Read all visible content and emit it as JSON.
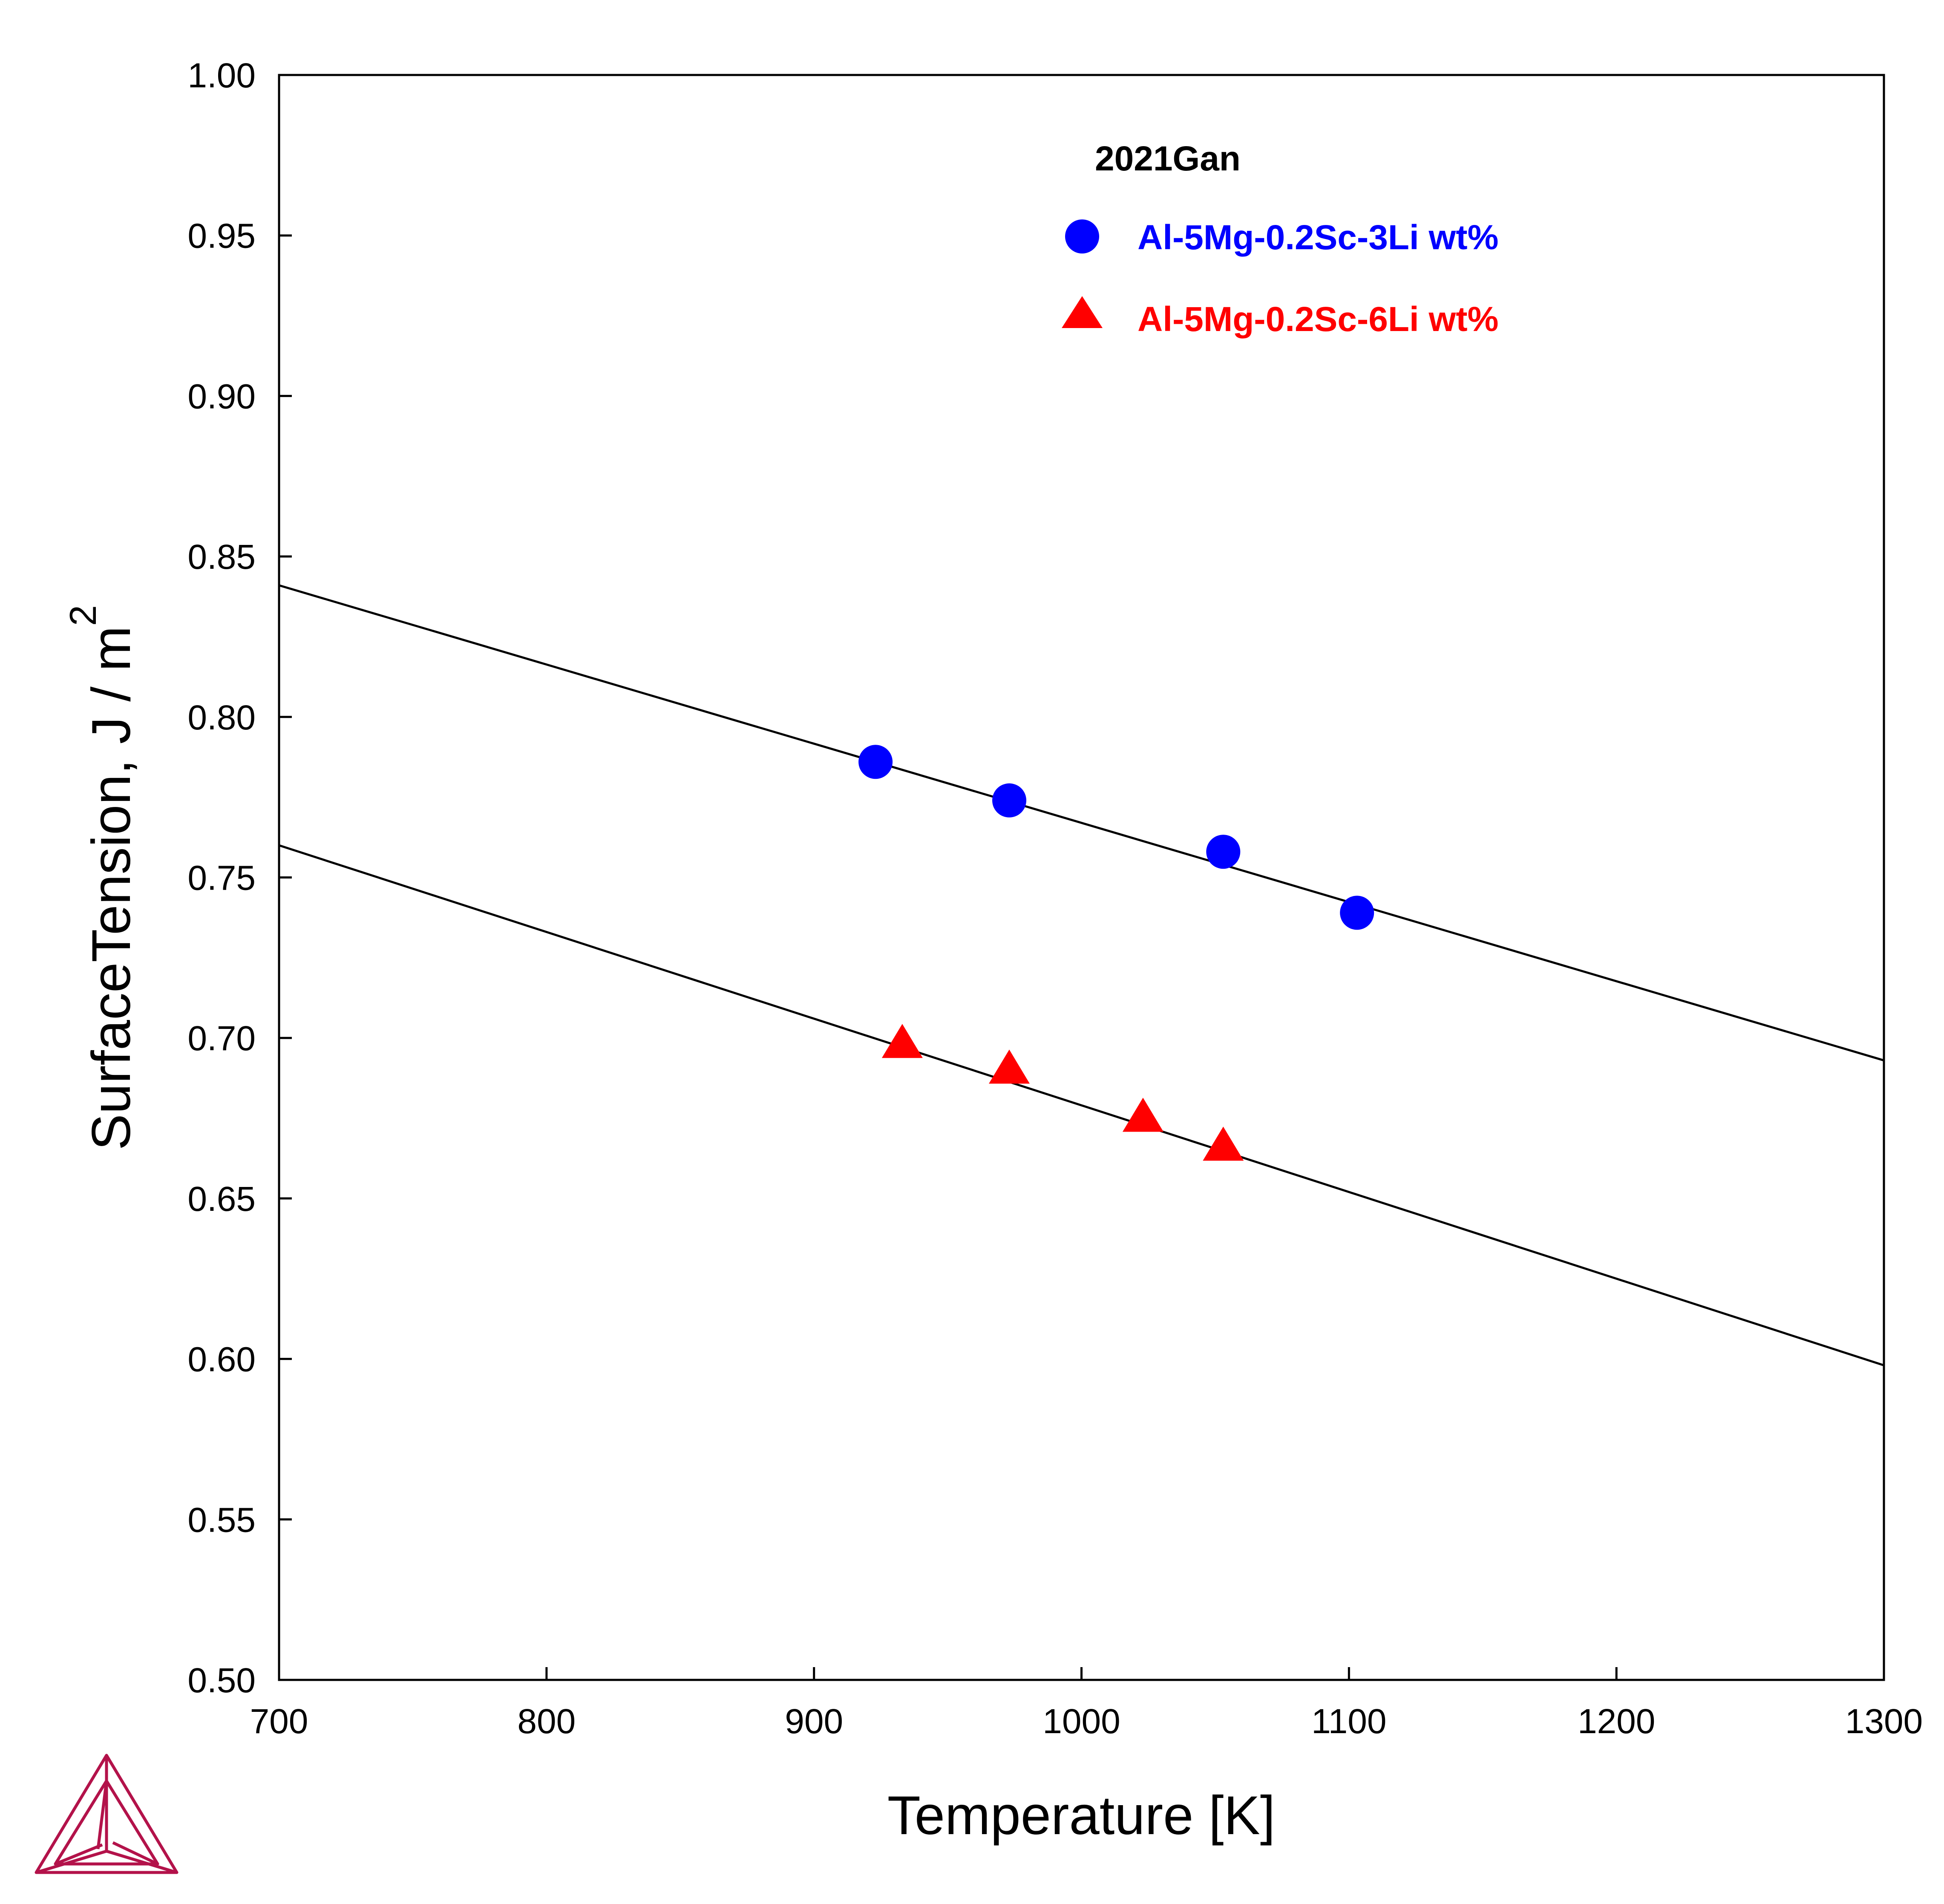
{
  "chart_data": {
    "type": "scatter",
    "xlabel": "Temperature [K]",
    "ylabel": {
      "text": "SurfaceTension, J / m",
      "superscript": "2"
    },
    "xlim": [
      700,
      1300
    ],
    "ylim": [
      0.5,
      1.0
    ],
    "x_ticks": [
      700,
      800,
      900,
      1000,
      1100,
      1200,
      1300
    ],
    "x_tick_labels": [
      "700",
      "800",
      "900",
      "1000",
      "1100",
      "1200",
      "1300"
    ],
    "y_ticks": [
      0.5,
      0.55,
      0.6,
      0.65,
      0.7,
      0.75,
      0.8,
      0.85,
      0.9,
      0.95,
      1.0
    ],
    "y_tick_labels": [
      "0.50",
      "0.55",
      "0.60",
      "0.65",
      "0.70",
      "0.75",
      "0.80",
      "0.85",
      "0.90",
      "0.95",
      "1.00"
    ],
    "grid": false,
    "legend": {
      "title": "2021Gan",
      "placement": "top-right"
    },
    "series": [
      {
        "name": "Al-5Mg-0.2Sc-3Li wt%",
        "kind": "points",
        "marker": "circle",
        "color": "#0000ff",
        "x": [
          923,
          973,
          1053,
          1103
        ],
        "y": [
          0.786,
          0.774,
          0.758,
          0.739
        ]
      },
      {
        "name": "Al-5Mg-0.2Sc-6Li wt%",
        "kind": "points",
        "marker": "triangle",
        "color": "#ff0000",
        "x": [
          933,
          973,
          1023,
          1053
        ],
        "y": [
          0.698,
          0.69,
          0.675,
          0.666
        ]
      },
      {
        "kind": "line",
        "color": "#000000",
        "x": [
          700,
          1300
        ],
        "y": [
          0.841,
          0.693
        ]
      },
      {
        "kind": "line",
        "color": "#000000",
        "x": [
          700,
          1300
        ],
        "y": [
          0.76,
          0.598
        ]
      }
    ]
  },
  "logo": {
    "icon": "thermo-calc-triangle-logo",
    "color": "#b3124a"
  }
}
